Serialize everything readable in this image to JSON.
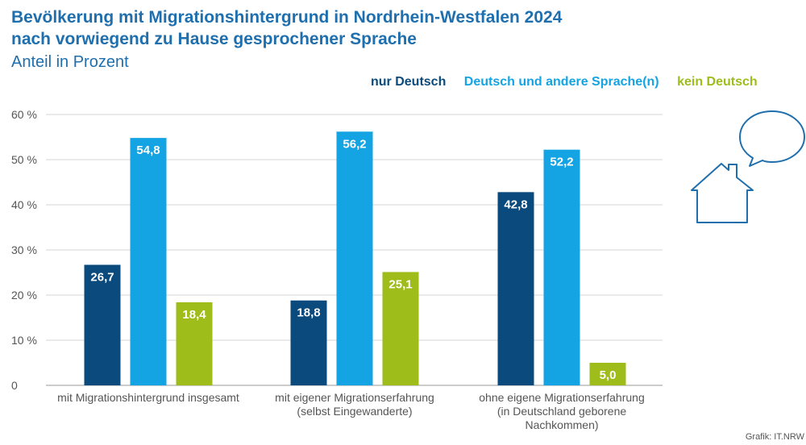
{
  "title_lines": [
    "Bevölkerung mit Migrationshintergrund in Nordrhein-Westfalen 2024",
    "nach vorwiegend zu Hause gesprochener Sprache"
  ],
  "subtitle": "Anteil in Prozent",
  "credit": "Grafik: IT.NRW",
  "colors": {
    "title": "#1f6fae",
    "grid": "#d6d6d6",
    "axis_text": "#555555"
  },
  "chart_data": {
    "type": "bar",
    "categories": [
      [
        "mit Migrationshintergrund insgesamt"
      ],
      [
        "mit eigener Migrationserfahrung",
        "(selbst Eingewanderte)"
      ],
      [
        "ohne eigene Migrationserfahrung",
        "(in Deutschland geborene",
        "Nachkommen)"
      ]
    ],
    "series": [
      {
        "name": "nur Deutsch",
        "color": "#0b4a7d",
        "values": [
          26.7,
          18.8,
          42.8
        ],
        "labels": [
          "26,7",
          "18,8",
          "42,8"
        ]
      },
      {
        "name": "Deutsch und andere Sprache(n)",
        "color": "#14a3e3",
        "values": [
          54.8,
          56.2,
          52.2
        ],
        "labels": [
          "54,8",
          "56,2",
          "52,2"
        ]
      },
      {
        "name": "kein Deutsch",
        "color": "#9ebd1a",
        "values": [
          18.4,
          25.1,
          5.0
        ],
        "labels": [
          "18,4",
          "25,1",
          "5,0"
        ]
      }
    ],
    "ylim": [
      0,
      60
    ],
    "yticks": [
      0,
      10,
      20,
      30,
      40,
      50,
      60
    ],
    "ytick_labels": [
      "0",
      "10 %",
      "20 %",
      "30 %",
      "40 %",
      "50 %",
      "60 %"
    ],
    "grid": true,
    "legend_position": "top-right"
  },
  "decoration": {
    "icon": "house-with-speech-bubble-icon",
    "color": "#1f6fae"
  }
}
